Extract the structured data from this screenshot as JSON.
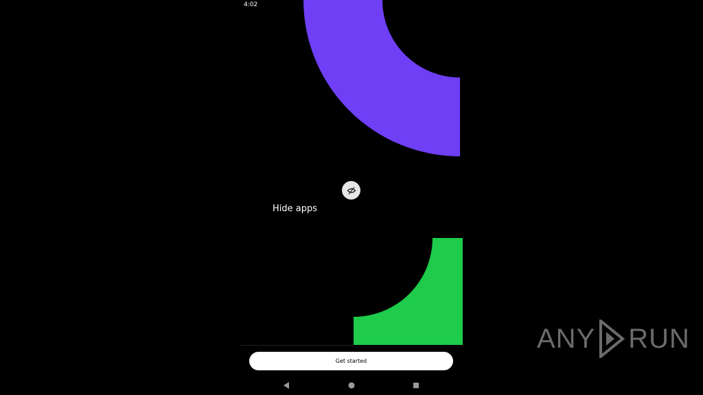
{
  "status_bar": {
    "time": "4:02"
  },
  "colors": {
    "purple": "#6e3ff5",
    "green": "#1ecb4b",
    "button_bg": "#ffffff"
  },
  "feature": {
    "icon": "eye-off-icon",
    "label": "Hide apps"
  },
  "cta": {
    "label": "Get started"
  },
  "nav_bar": {
    "back": "back-icon",
    "home": "home-icon",
    "recents": "recents-icon"
  },
  "watermark": {
    "left": "ANY",
    "right": "RUN"
  }
}
